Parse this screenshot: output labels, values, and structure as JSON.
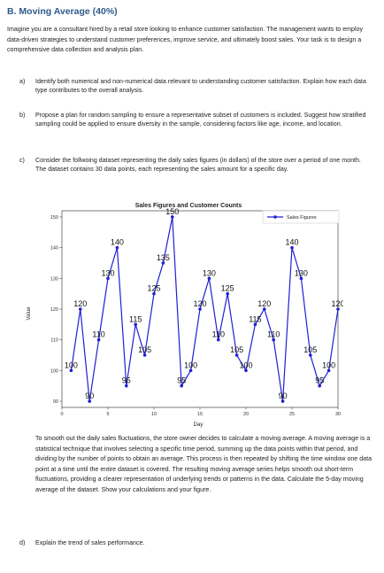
{
  "heading": "B. Moving Average (40%)",
  "intro": "Imagine you are a consultant hired by a retail store looking to enhance customer satisfaction. The management wants to employ data-driven strategies to understand customer preferences, improve service, and ultimately boost sales. Your task is to design a comprehensive data collection and analysis plan.",
  "questions": [
    {
      "label": "a)",
      "text": "Identify both numerical and non-numerical data relevant to understanding customer satisfaction. Explain how each data type contributes to the overall analysis."
    },
    {
      "label": "b)",
      "text": "Propose a plan for random sampling to ensure a representative subset of customers is included. Suggest how stratified sampling could be applied to ensure diversity in the sample, considering factors like age, income, and location."
    },
    {
      "label": "c)",
      "text": "Consider the follwoing dataset representing the daily sales figures (in dollars) of the store over a period of one month. The dataset contains 30 data points, each representing the sales amount for a specific day."
    },
    {
      "label": "d)",
      "text": "Explain the trend of sales performance."
    }
  ],
  "moving_average_paragraph": "To smooth out the daily sales fluctuations, the store owner decides to calculate a moving average. A moving average is a statistical technique that involves selecting a specific time period, summing up the data points within that period, and dividing by the number of points to obtain an average. This process is then repeated by shifting the time window one data point at a time until the entire dataset is covered. The resulting moving average series helps smooth out short-term fluctuations, providing a clearer representation of underlying trends or patterns in the data. Calculate the 5-day moving average of the dataset. Show your calculations and your figure.",
  "chart_data": {
    "type": "line",
    "title": "Sales Figures and Customer Counts",
    "xlabel": "Day",
    "ylabel": "Value",
    "xlim": [
      0,
      30
    ],
    "ylim": [
      88,
      152
    ],
    "xticks": [
      0,
      5,
      10,
      15,
      20,
      25,
      30
    ],
    "yticks": [
      90,
      100,
      110,
      120,
      130,
      140,
      150
    ],
    "grid": false,
    "legend_position": "top-right",
    "series": [
      {
        "name": "Sales Figures",
        "color": "#1f1fd6",
        "x": [
          1,
          2,
          3,
          4,
          5,
          6,
          7,
          8,
          9,
          10,
          11,
          12,
          13,
          14,
          15,
          16,
          17,
          18,
          19,
          20,
          21,
          22,
          23,
          24,
          25,
          26,
          27,
          28,
          29,
          30
        ],
        "y": [
          100,
          120,
          90,
          110,
          130,
          140,
          95,
          115,
          105,
          125,
          135,
          150,
          95,
          100,
          120,
          130,
          110,
          125,
          105,
          100,
          115,
          120,
          110,
          90,
          140,
          130,
          105,
          95,
          100,
          120
        ]
      }
    ]
  }
}
